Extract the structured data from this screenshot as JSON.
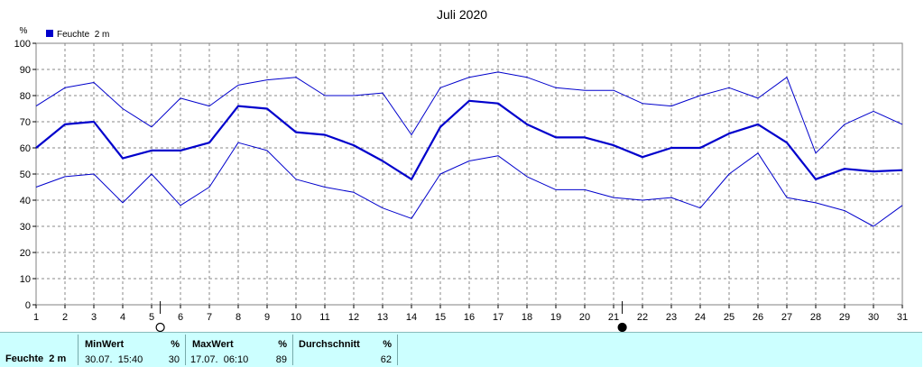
{
  "chart_data": {
    "type": "line",
    "title": "Juli 2020",
    "ylabel": "%",
    "ylim": [
      0,
      100
    ],
    "yticks": [
      "0",
      "10",
      "20",
      "30",
      "40",
      "50",
      "60",
      "70",
      "80",
      "90",
      "100"
    ],
    "categories": [
      "1",
      "2",
      "3",
      "4",
      "5",
      "6",
      "7",
      "8",
      "9",
      "10",
      "11",
      "12",
      "13",
      "14",
      "15",
      "16",
      "17",
      "18",
      "19",
      "20",
      "21",
      "22",
      "23",
      "24",
      "25",
      "26",
      "27",
      "28",
      "29",
      "30",
      "31"
    ],
    "legend": "Feuchte  2 m",
    "series": [
      {
        "name": "Max",
        "values": [
          76,
          83,
          85,
          75,
          68,
          79,
          76,
          84,
          86,
          87,
          80,
          80,
          81,
          65,
          83,
          87,
          89,
          87,
          83,
          82,
          82,
          77,
          76,
          80,
          83,
          79,
          87,
          58,
          69,
          74,
          69
        ]
      },
      {
        "name": "Feuchte  2 m",
        "values": [
          60,
          69,
          70,
          56,
          59,
          59,
          62,
          76,
          75,
          66,
          65,
          61,
          55,
          48,
          68,
          78,
          77,
          69,
          64,
          64,
          61,
          56.5,
          60,
          60,
          65.5,
          69,
          62,
          48,
          52,
          51,
          51.5
        ]
      },
      {
        "name": "Min",
        "values": [
          45,
          49,
          50,
          39,
          50,
          38,
          45,
          62,
          59,
          48,
          45,
          43,
          37,
          33,
          50,
          55,
          57,
          49,
          44,
          44,
          41,
          40,
          41,
          37,
          50,
          58,
          41,
          39,
          36,
          30,
          38
        ]
      }
    ],
    "grid": true,
    "moon_markers": [
      {
        "day": 5,
        "phase": "Vollmond"
      },
      {
        "day": 21,
        "phase": "Neumond"
      }
    ],
    "colors": {
      "line": "#0000cc",
      "grid": "#888888",
      "legend_box": "#0000cc"
    }
  },
  "stats": {
    "row_label": "Feuchte  2 m",
    "min": {
      "header": "MinWert",
      "unit": "%",
      "time": "30.07.  15:40",
      "value": "30"
    },
    "max": {
      "header": "MaxWert",
      "unit": "%",
      "time": "17.07.  06:10",
      "value": "89"
    },
    "avg": {
      "header": "Durchschnitt",
      "unit": "%",
      "value": "62"
    }
  }
}
